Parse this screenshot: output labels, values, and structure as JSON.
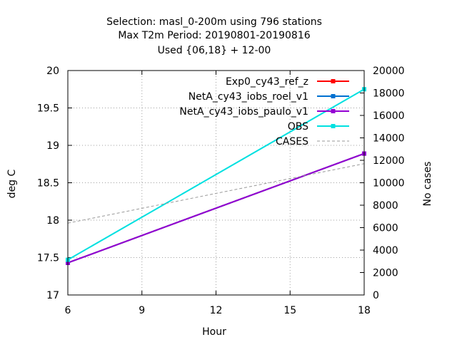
{
  "chart_data": {
    "type": "line",
    "title_lines": [
      "Selection: masl_0-200m using   796 stations",
      "Max T2m   Period: 20190801-20190816",
      "Used {06,18} + 12-00"
    ],
    "xlabel": "Hour",
    "ylabel": "deg C",
    "y2label": "No cases",
    "xlim": [
      6,
      18
    ],
    "ylim": [
      17,
      20
    ],
    "y2lim": [
      0,
      20000
    ],
    "x_ticks": [
      6,
      9,
      12,
      15,
      18
    ],
    "y_ticks": [
      17,
      17.5,
      18,
      18.5,
      19,
      19.5,
      20
    ],
    "y2_ticks": [
      0,
      2000,
      4000,
      6000,
      8000,
      10000,
      12000,
      14000,
      16000,
      18000,
      20000
    ],
    "grid": true,
    "legend_position": "top-right",
    "series": [
      {
        "name": "Exp0_cy43_ref_z",
        "color": "#ff0000",
        "axis": "y",
        "style": "solid-points",
        "x": [
          6,
          18
        ],
        "y": [
          17.43,
          18.89
        ]
      },
      {
        "name": "NetA_cy43_iobs_roel_v1",
        "color": "#0070d0",
        "axis": "y",
        "style": "solid-points",
        "x": [
          6,
          18
        ],
        "y": [
          17.43,
          18.89
        ]
      },
      {
        "name": "NetA_cy43_iobs_paulo_v1",
        "color": "#9400d3",
        "axis": "y",
        "style": "solid-points",
        "x": [
          6,
          18
        ],
        "y": [
          17.43,
          18.89
        ]
      },
      {
        "name": "OBS",
        "color": "#00e0e0",
        "axis": "y",
        "style": "solid-points",
        "x": [
          6,
          18
        ],
        "y": [
          17.47,
          19.75
        ]
      },
      {
        "name": "CASES",
        "color": "#999999",
        "axis": "y2",
        "style": "dashed",
        "x": [
          6,
          18
        ],
        "y": [
          6400,
          11700
        ]
      }
    ]
  }
}
